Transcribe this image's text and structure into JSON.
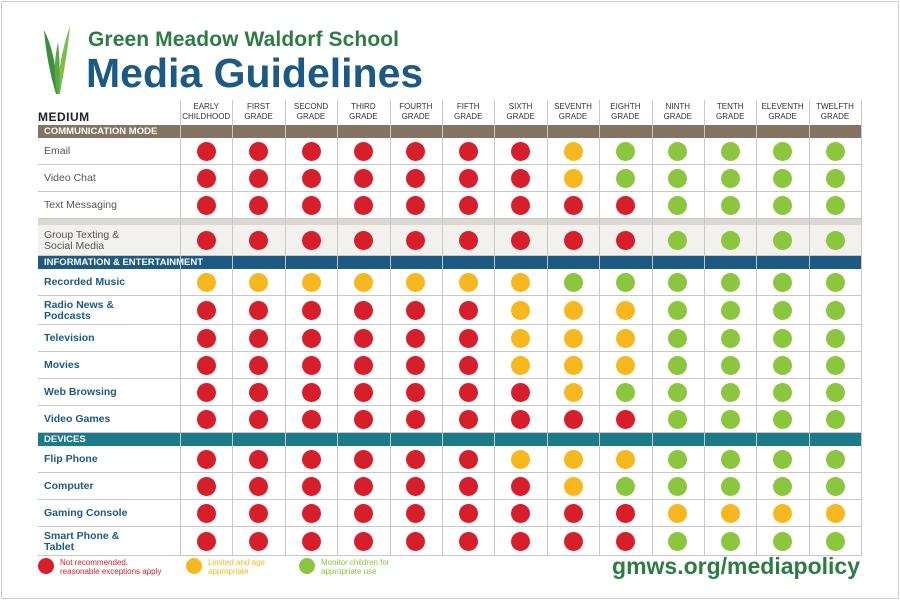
{
  "header": {
    "school": "Green Meadow Waldorf School",
    "title": "Media Guidelines"
  },
  "colors": {
    "red": "#d71f2c",
    "yellow": "#f7b81f",
    "green": "#8cc63f"
  },
  "chart_data": {
    "type": "table",
    "row_header": "MEDIUM",
    "columns": [
      [
        "EARLY",
        "CHILDHOOD"
      ],
      [
        "FIRST",
        "GRADE"
      ],
      [
        "SECOND",
        "GRADE"
      ],
      [
        "THIRD",
        "GRADE"
      ],
      [
        "FOURTH",
        "GRADE"
      ],
      [
        "FIFTH",
        "GRADE"
      ],
      [
        "SIXTH",
        "GRADE"
      ],
      [
        "SEVENTH",
        "GRADE"
      ],
      [
        "EIGHTH",
        "GRADE"
      ],
      [
        "NINTH",
        "GRADE"
      ],
      [
        "TENTH",
        "GRADE"
      ],
      [
        "ELEVENTH",
        "GRADE"
      ],
      [
        "TWELFTH",
        "GRADE"
      ]
    ],
    "sections": [
      {
        "name": "COMMUNICATION MODE",
        "color": "#857461",
        "rows": [
          {
            "label": [
              "Email"
            ],
            "values": [
              "R",
              "R",
              "R",
              "R",
              "R",
              "R",
              "R",
              "Y",
              "G",
              "G",
              "G",
              "G",
              "G"
            ]
          },
          {
            "label": [
              "Video Chat"
            ],
            "values": [
              "R",
              "R",
              "R",
              "R",
              "R",
              "R",
              "R",
              "Y",
              "G",
              "G",
              "G",
              "G",
              "G"
            ]
          },
          {
            "label": [
              "Text Messaging"
            ],
            "values": [
              "R",
              "R",
              "R",
              "R",
              "R",
              "R",
              "R",
              "R",
              "R",
              "G",
              "G",
              "G",
              "G"
            ]
          },
          {
            "label": [
              "Group Texting &",
              "Social Media"
            ],
            "values": [
              "R",
              "R",
              "R",
              "R",
              "R",
              "R",
              "R",
              "R",
              "R",
              "G",
              "G",
              "G",
              "G"
            ]
          }
        ]
      },
      {
        "name": "INFORMATION & ENTERTAINMENT",
        "color": "#1d5a83",
        "rows": [
          {
            "label": [
              "Recorded Music"
            ],
            "values": [
              "Y",
              "Y",
              "Y",
              "Y",
              "Y",
              "Y",
              "Y",
              "G",
              "G",
              "G",
              "G",
              "G",
              "G"
            ]
          },
          {
            "label": [
              "Radio News &",
              "Podcasts"
            ],
            "values": [
              "R",
              "R",
              "R",
              "R",
              "R",
              "R",
              "Y",
              "Y",
              "Y",
              "G",
              "G",
              "G",
              "G"
            ]
          },
          {
            "label": [
              "Television"
            ],
            "values": [
              "R",
              "R",
              "R",
              "R",
              "R",
              "R",
              "Y",
              "Y",
              "Y",
              "G",
              "G",
              "G",
              "G"
            ]
          },
          {
            "label": [
              "Movies"
            ],
            "values": [
              "R",
              "R",
              "R",
              "R",
              "R",
              "R",
              "Y",
              "Y",
              "Y",
              "G",
              "G",
              "G",
              "G"
            ]
          },
          {
            "label": [
              "Web Browsing"
            ],
            "values": [
              "R",
              "R",
              "R",
              "R",
              "R",
              "R",
              "R",
              "Y",
              "G",
              "G",
              "G",
              "G",
              "G"
            ]
          },
          {
            "label": [
              "Video Games"
            ],
            "values": [
              "R",
              "R",
              "R",
              "R",
              "R",
              "R",
              "R",
              "R",
              "R",
              "G",
              "G",
              "G",
              "G"
            ]
          }
        ]
      },
      {
        "name": "DEVICES",
        "color": "#1d7a89",
        "rows": [
          {
            "label": [
              "Flip Phone"
            ],
            "values": [
              "R",
              "R",
              "R",
              "R",
              "R",
              "R",
              "Y",
              "Y",
              "Y",
              "G",
              "G",
              "G",
              "G"
            ]
          },
          {
            "label": [
              "Computer"
            ],
            "values": [
              "R",
              "R",
              "R",
              "R",
              "R",
              "R",
              "R",
              "Y",
              "G",
              "G",
              "G",
              "G",
              "G"
            ]
          },
          {
            "label": [
              "Gaming Console"
            ],
            "values": [
              "R",
              "R",
              "R",
              "R",
              "R",
              "R",
              "R",
              "R",
              "R",
              "Y",
              "Y",
              "Y",
              "Y"
            ]
          },
          {
            "label": [
              "Smart Phone &",
              "Tablet"
            ],
            "values": [
              "R",
              "R",
              "R",
              "R",
              "R",
              "R",
              "R",
              "R",
              "R",
              "G",
              "G",
              "G",
              "G"
            ]
          }
        ]
      }
    ],
    "legend": [
      {
        "key": "R",
        "text": [
          "Not recommended,",
          "reasonable exceptions apply"
        ]
      },
      {
        "key": "Y",
        "text": [
          "Limited and age",
          "appropriate"
        ]
      },
      {
        "key": "G",
        "text": [
          "Monitor children for",
          "appropriate use"
        ]
      }
    ]
  },
  "footer": {
    "url": "gmws.org/mediapolicy"
  }
}
